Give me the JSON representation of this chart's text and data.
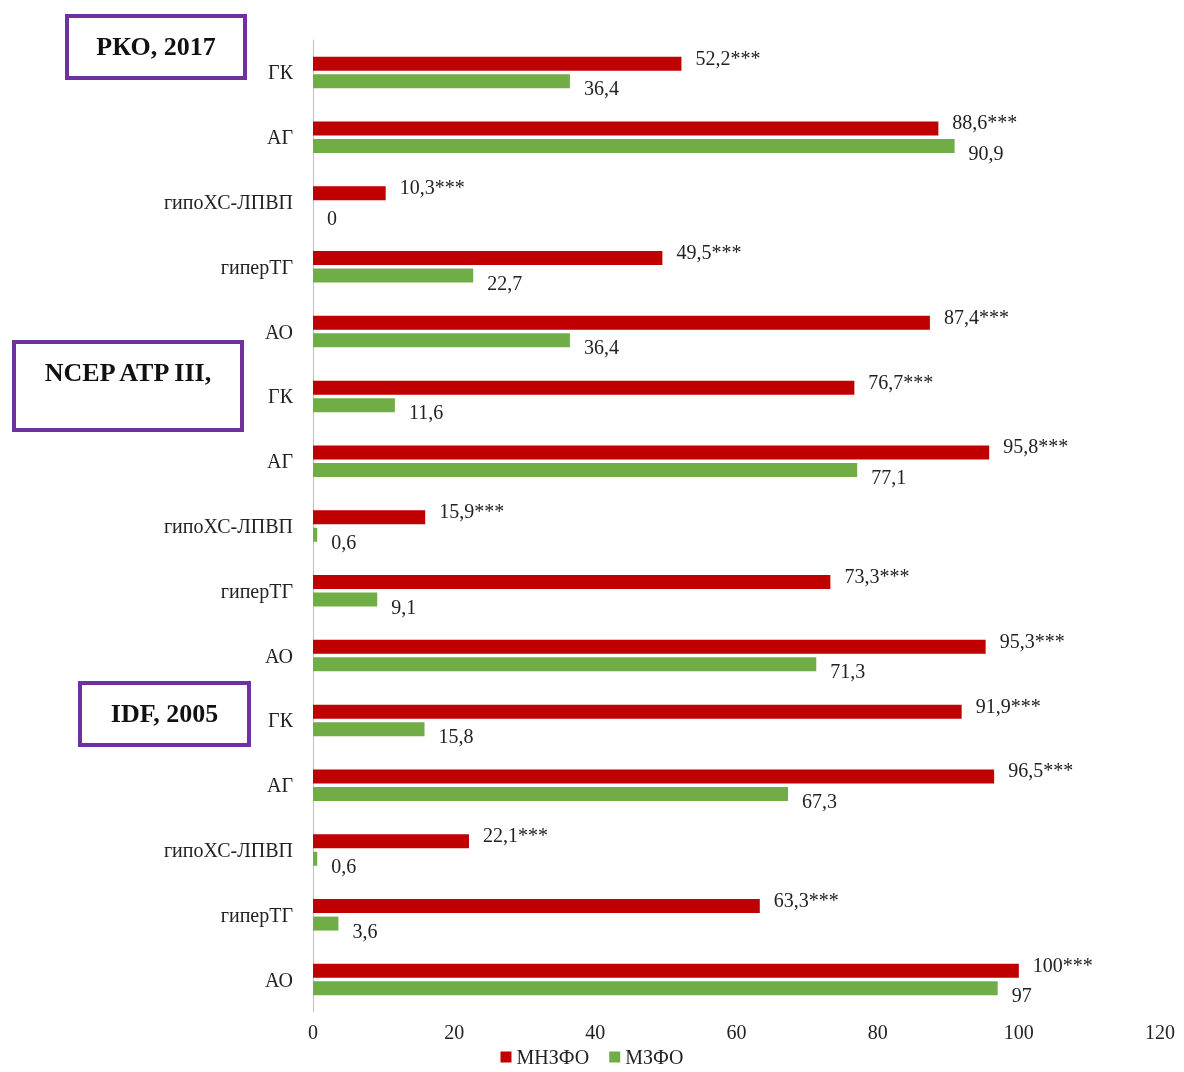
{
  "chart_data": {
    "type": "bar",
    "orientation": "horizontal",
    "categories": [
      "ГК",
      "АГ",
      "гипоХС-ЛПВП",
      "гиперТГ",
      "АО",
      "ГК",
      "АГ",
      "гипоХС-ЛПВП",
      "гиперТГ",
      "АО",
      "ГК",
      "АГ",
      "гипоХС-ЛПВП",
      "гиперТГ",
      "АО"
    ],
    "series": [
      {
        "name": "МНЗФО",
        "color": "#c00000",
        "values": [
          52.2,
          88.6,
          10.3,
          49.5,
          87.4,
          76.7,
          95.8,
          15.9,
          73.3,
          95.3,
          91.9,
          96.5,
          22.1,
          63.3,
          100
        ],
        "value_labels": [
          "52,2***",
          "88,6***",
          "10,3***",
          "49,5***",
          "87,4***",
          "76,7***",
          "95,8***",
          "15,9***",
          "73,3***",
          "95,3***",
          "91,9***",
          "96,5***",
          "22,1***",
          "63,3***",
          "100***"
        ]
      },
      {
        "name": "МЗФО",
        "color": "#70ad47",
        "values": [
          36.4,
          90.9,
          0,
          22.7,
          36.4,
          11.6,
          77.1,
          0.6,
          9.1,
          71.3,
          15.8,
          67.3,
          0.6,
          3.6,
          97
        ],
        "value_labels": [
          "36,4",
          "90,9",
          "0",
          "22,7",
          "36,4",
          "11,6",
          "77,1",
          "0,6",
          "9,1",
          "71,3",
          "15,8",
          "67,3",
          "0,6",
          "3,6",
          "97"
        ]
      }
    ],
    "xlim": [
      0,
      120
    ],
    "xticks": [
      0,
      20,
      40,
      60,
      80,
      100,
      120
    ],
    "grid": false,
    "legend": "bottom",
    "annotations": [
      "РКО, 2017",
      "NCEP ATP III,",
      "IDF, 2005"
    ]
  }
}
